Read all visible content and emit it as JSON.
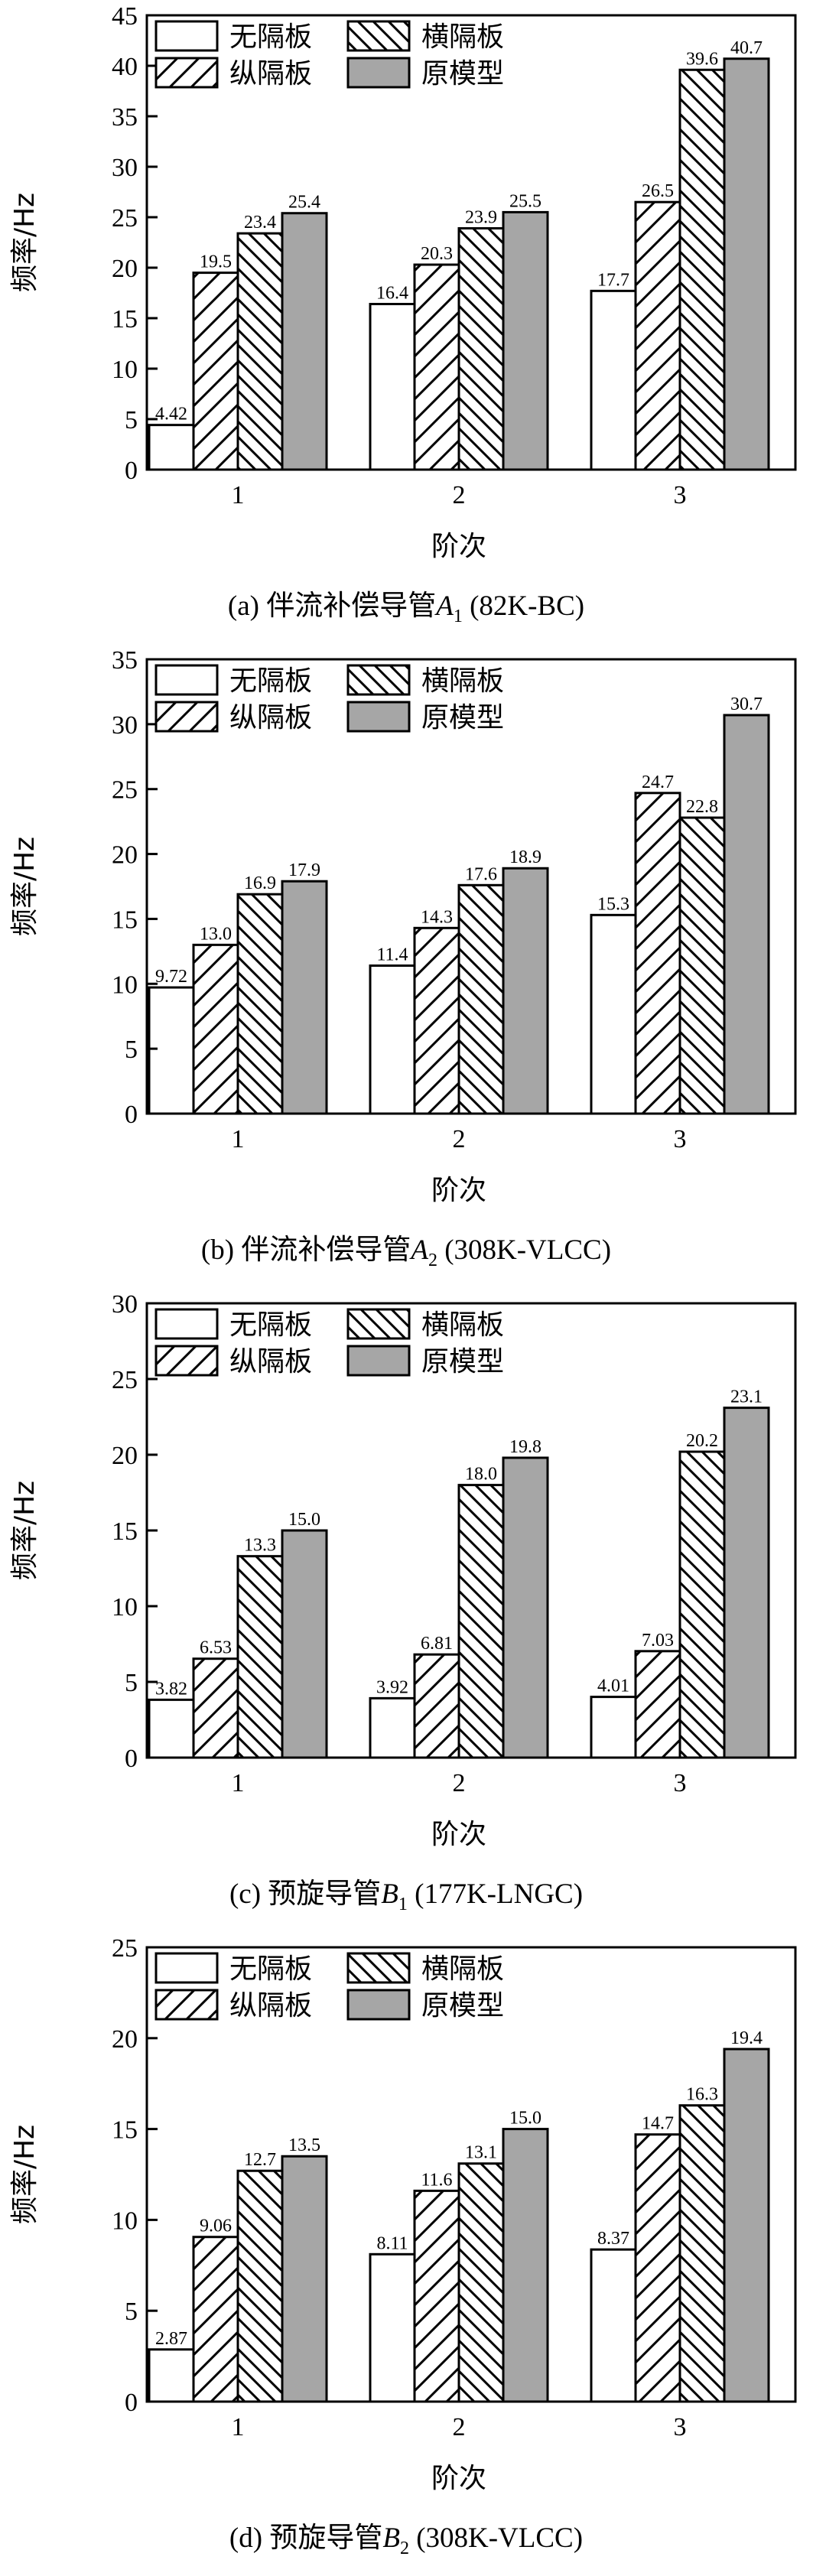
{
  "legend": {
    "series": [
      "无隔板",
      "横隔板",
      "纵隔板",
      "原模型"
    ]
  },
  "colors": {
    "none": "#ffffff",
    "original": "#a6a6a6",
    "stroke": "#000000"
  },
  "chart_data": [
    {
      "type": "bar",
      "panel": "a",
      "caption": {
        "prefix": "(a) 伴流补偿导管",
        "letter": "A",
        "sub": "1",
        "suffix": " (82K-BC)"
      },
      "categories": [
        "1",
        "2",
        "3"
      ],
      "xlabel": "阶次",
      "ylabel": "频率/Hz",
      "ylim": [
        0,
        45
      ],
      "yticks": [
        "0",
        "5",
        "10",
        "15",
        "20",
        "25",
        "30",
        "35",
        "40",
        "45"
      ],
      "legend_position": "top-left",
      "series": [
        {
          "name": "无隔板",
          "values": [
            4.42,
            16.4,
            17.7
          ],
          "labels": [
            "4.42",
            "16.4",
            "17.7"
          ]
        },
        {
          "name": "纵隔板",
          "values": [
            19.5,
            20.3,
            26.5
          ],
          "labels": [
            "19.5",
            "20.3",
            "26.5"
          ]
        },
        {
          "name": "横隔板",
          "values": [
            23.4,
            23.9,
            39.6
          ],
          "labels": [
            "23.4",
            "23.9",
            "39.6"
          ]
        },
        {
          "name": "原模型",
          "values": [
            25.4,
            25.5,
            40.7
          ],
          "labels": [
            "25.4",
            "25.5",
            "40.7"
          ]
        }
      ]
    },
    {
      "type": "bar",
      "panel": "b",
      "caption": {
        "prefix": "(b) 伴流补偿导管",
        "letter": "A",
        "sub": "2",
        "suffix": " (308K-VLCC)"
      },
      "categories": [
        "1",
        "2",
        "3"
      ],
      "xlabel": "阶次",
      "ylabel": "频率/Hz",
      "ylim": [
        0,
        35
      ],
      "yticks": [
        "0",
        "5",
        "10",
        "15",
        "20",
        "25",
        "30",
        "35"
      ],
      "legend_position": "top-left",
      "series": [
        {
          "name": "无隔板",
          "values": [
            9.72,
            11.4,
            15.3
          ],
          "labels": [
            "9.72",
            "11.4",
            "15.3"
          ]
        },
        {
          "name": "纵隔板",
          "values": [
            13.0,
            14.3,
            24.7
          ],
          "labels": [
            "13.0",
            "14.3",
            "24.7"
          ]
        },
        {
          "name": "横隔板",
          "values": [
            16.9,
            17.6,
            22.8
          ],
          "labels": [
            "16.9",
            "17.6",
            "22.8"
          ]
        },
        {
          "name": "原模型",
          "values": [
            17.9,
            18.9,
            30.7
          ],
          "labels": [
            "17.9",
            "18.9",
            "30.7"
          ]
        }
      ]
    },
    {
      "type": "bar",
      "panel": "c",
      "caption": {
        "prefix": "(c) 预旋导管",
        "letter": "B",
        "sub": "1",
        "suffix": " (177K-LNGC)"
      },
      "categories": [
        "1",
        "2",
        "3"
      ],
      "xlabel": "阶次",
      "ylabel": "频率/Hz",
      "ylim": [
        0,
        30
      ],
      "yticks": [
        "0",
        "5",
        "10",
        "15",
        "20",
        "25",
        "30"
      ],
      "legend_position": "top-left",
      "series": [
        {
          "name": "无隔板",
          "values": [
            3.82,
            3.92,
            4.01
          ],
          "labels": [
            "3.82",
            "3.92",
            "4.01"
          ]
        },
        {
          "name": "纵隔板",
          "values": [
            6.53,
            6.81,
            7.03
          ],
          "labels": [
            "6.53",
            "6.81",
            "7.03"
          ]
        },
        {
          "name": "横隔板",
          "values": [
            13.3,
            18.0,
            20.2
          ],
          "labels": [
            "13.3",
            "18.0",
            "20.2"
          ]
        },
        {
          "name": "原模型",
          "values": [
            15.0,
            19.8,
            23.1
          ],
          "labels": [
            "15.0",
            "19.8",
            "23.1"
          ]
        }
      ]
    },
    {
      "type": "bar",
      "panel": "d",
      "caption": {
        "prefix": "(d) 预旋导管",
        "letter": "B",
        "sub": "2",
        "suffix": " (308K-VLCC)"
      },
      "categories": [
        "1",
        "2",
        "3"
      ],
      "xlabel": "阶次",
      "ylabel": "频率/Hz",
      "ylim": [
        0,
        25
      ],
      "yticks": [
        "0",
        "5",
        "10",
        "15",
        "20",
        "25"
      ],
      "legend_position": "top-left",
      "series": [
        {
          "name": "无隔板",
          "values": [
            2.87,
            8.11,
            8.37
          ],
          "labels": [
            "2.87",
            "8.11",
            "8.37"
          ]
        },
        {
          "name": "纵隔板",
          "values": [
            9.06,
            11.6,
            14.7
          ],
          "labels": [
            "9.06",
            "11.6",
            "14.7"
          ]
        },
        {
          "name": "横隔板",
          "values": [
            12.7,
            13.1,
            16.3
          ],
          "labels": [
            "12.7",
            "13.1",
            "16.3"
          ]
        },
        {
          "name": "原模型",
          "values": [
            13.5,
            15.0,
            19.4
          ],
          "labels": [
            "13.5",
            "15.0",
            "19.4"
          ]
        }
      ]
    }
  ]
}
